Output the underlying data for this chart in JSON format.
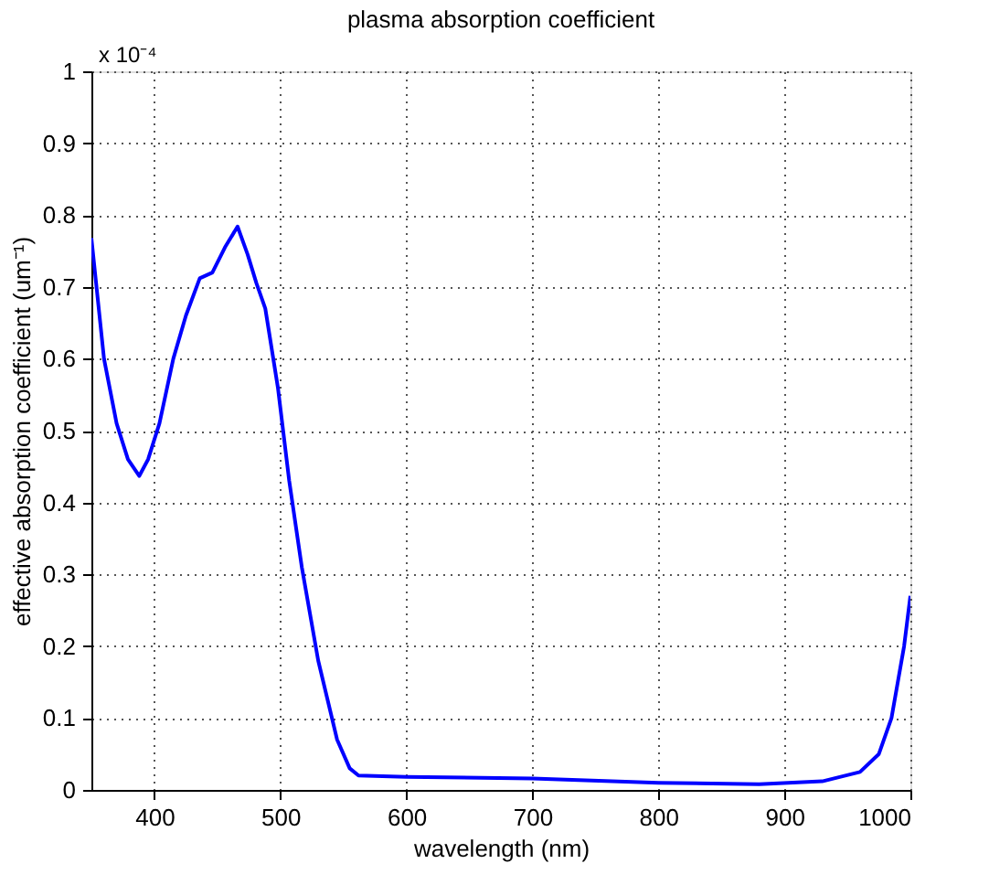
{
  "chart_data": {
    "type": "line",
    "title": "plasma absorption coefficient",
    "xlabel": "wavelength (nm)",
    "ylabel": "effective absorption coefficient (um⁻¹)",
    "annotations": [
      "x 10⁻⁴"
    ],
    "series": [
      {
        "color": "#0000ff",
        "x": [
          350,
          360,
          370,
          379,
          388,
          395,
          404,
          415,
          425,
          436,
          446,
          456,
          466,
          474,
          481,
          488,
          498,
          507,
          517,
          530,
          545,
          555,
          562,
          600,
          700,
          800,
          880,
          930,
          960,
          975,
          985,
          990,
          995,
          1000
        ],
        "values": [
          0.768,
          0.6,
          0.51,
          0.46,
          0.437,
          0.46,
          0.51,
          0.6,
          0.66,
          0.712,
          0.72,
          0.755,
          0.784,
          0.745,
          0.705,
          0.67,
          0.56,
          0.43,
          0.31,
          0.18,
          0.07,
          0.03,
          0.02,
          0.018,
          0.016,
          0.01,
          0.008,
          0.012,
          0.025,
          0.05,
          0.1,
          0.15,
          0.2,
          0.27
        ]
      }
    ],
    "xlim": [
      350,
      1000
    ],
    "xticks": [
      400,
      500,
      600,
      700,
      800,
      900,
      1000
    ],
    "ylim": [
      0,
      1
    ],
    "yticks": [
      0,
      0.1,
      0.2,
      0.3,
      0.4,
      0.5,
      0.6,
      0.7,
      0.8,
      0.9,
      1
    ],
    "grid": true,
    "line_style": "solid",
    "marker": "none"
  }
}
